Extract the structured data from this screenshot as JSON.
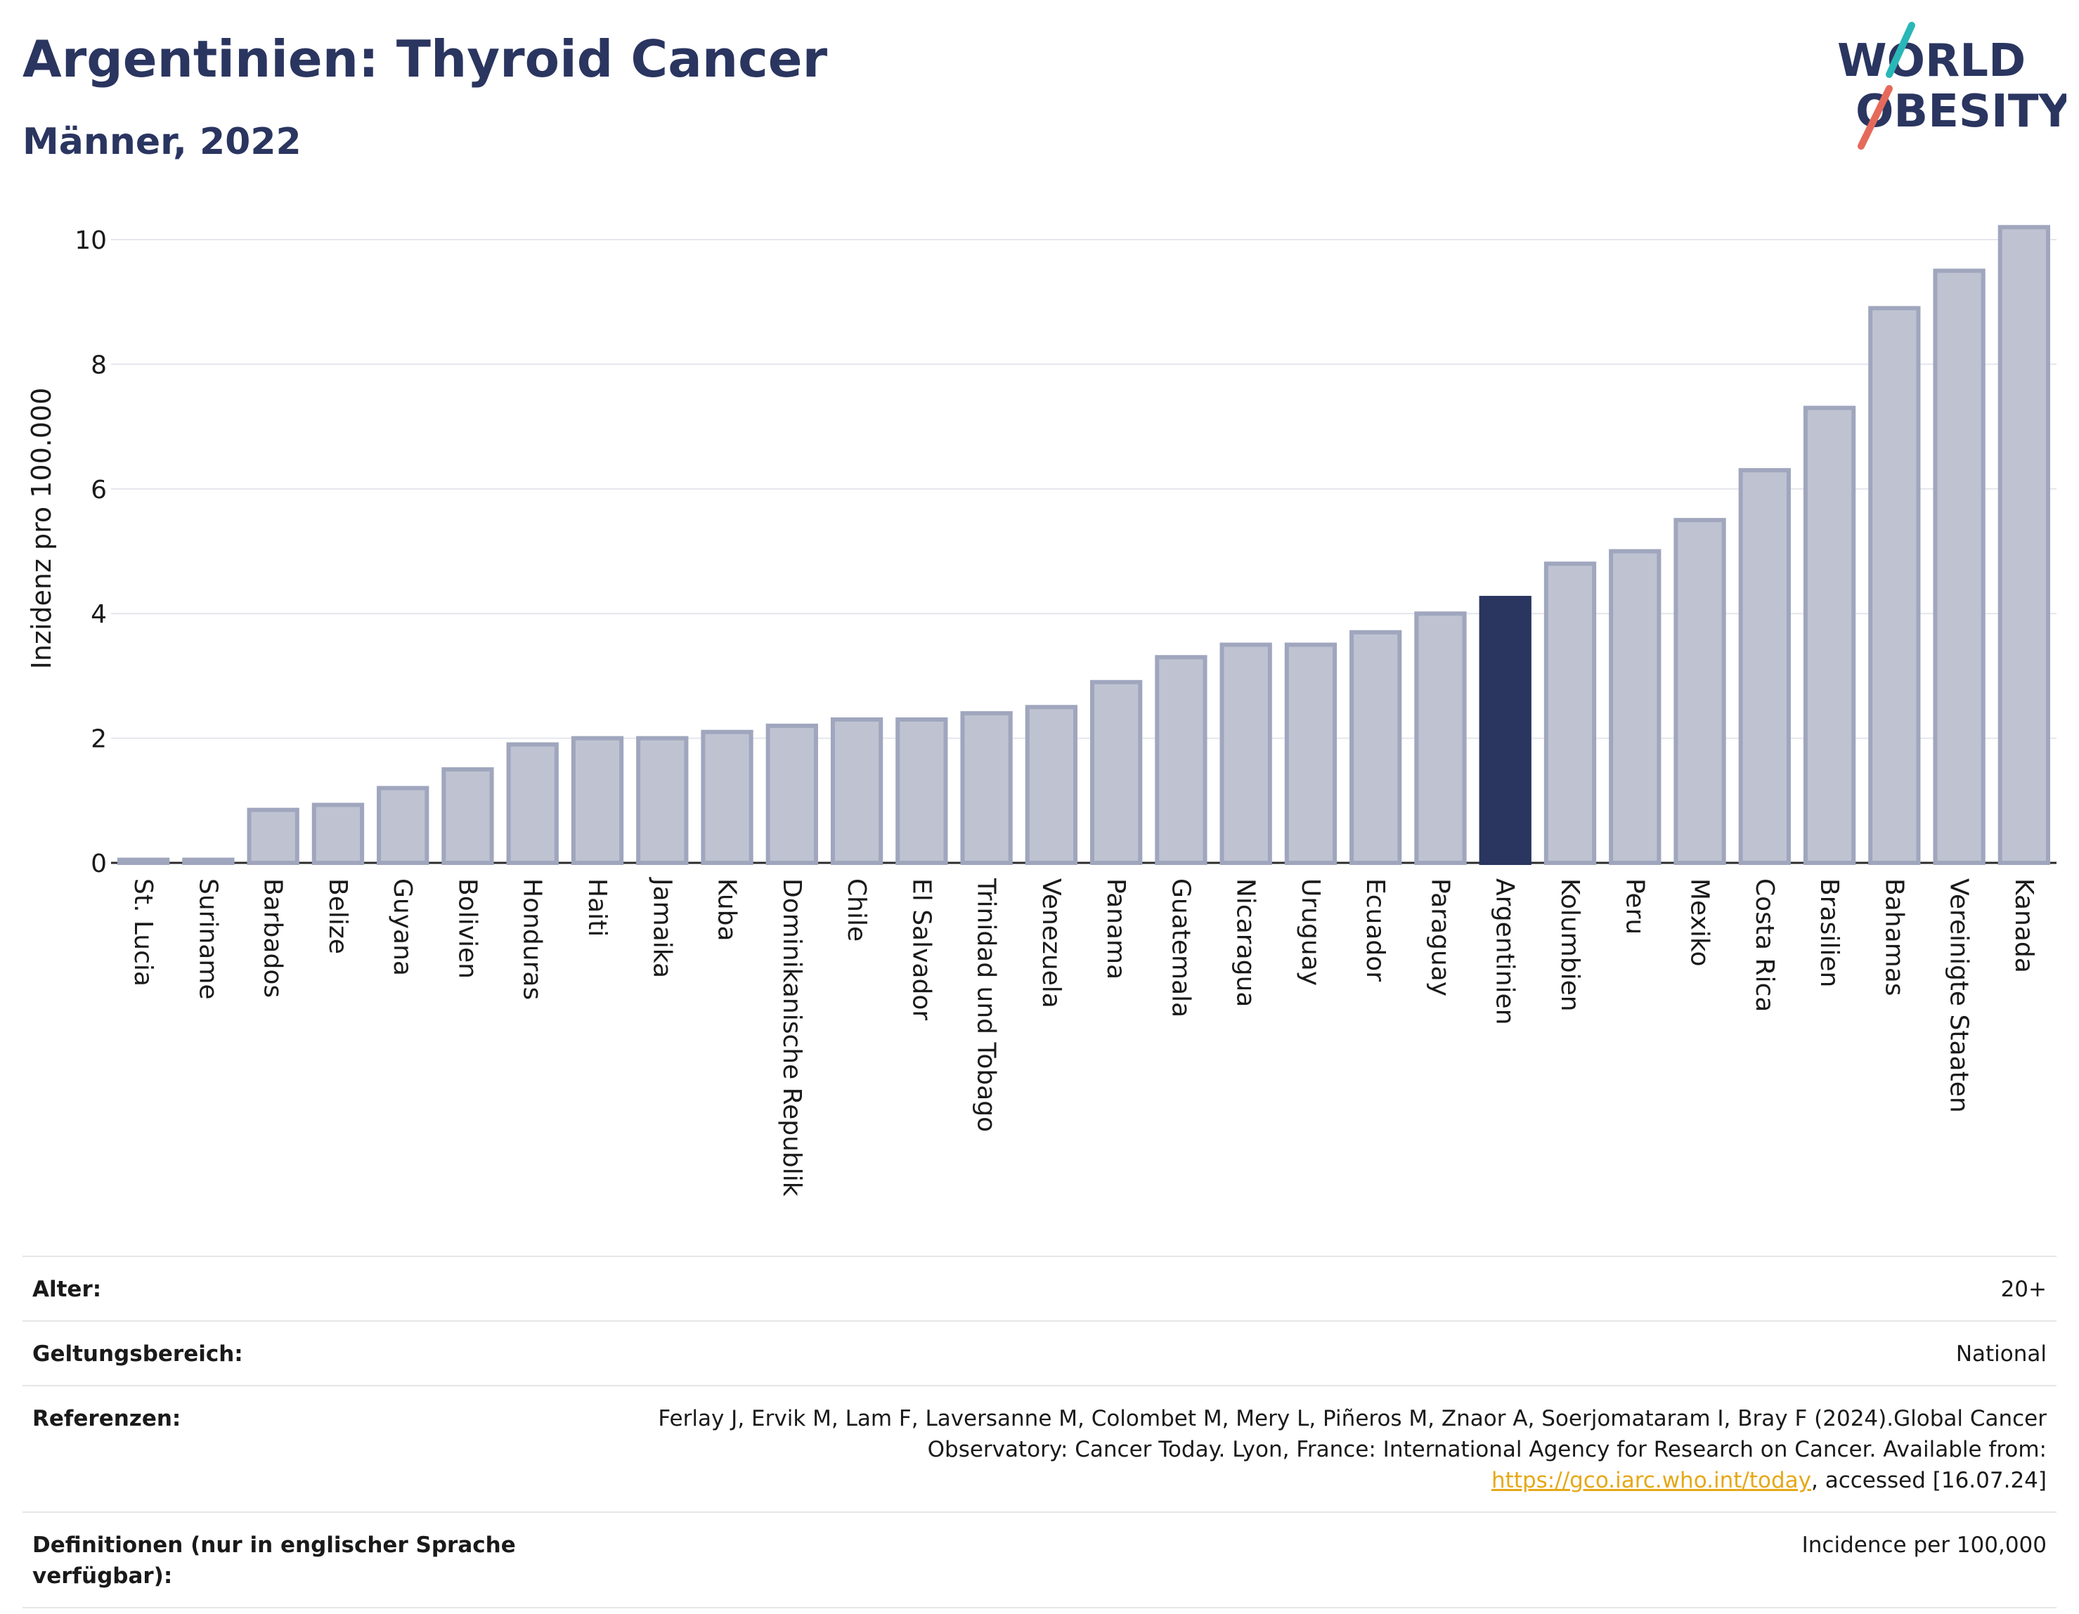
{
  "header": {
    "title": "Argentinien: Thyroid Cancer",
    "subtitle": "Männer, 2022"
  },
  "logo": {
    "line1": "WORLD",
    "line2": "OBESITY"
  },
  "colors": {
    "bar": "#bfc3d1",
    "bar_border": "#9fa6bd",
    "highlight": "#2a3560",
    "accent_teal": "#2ab7b7",
    "accent_red": "#e56a5b"
  },
  "chart_data": {
    "type": "bar",
    "ylabel": "Inzidenz pro 100.000",
    "xlabel": "",
    "ylim": [
      0,
      10.5
    ],
    "yticks": [
      0,
      2,
      4,
      6,
      8,
      10
    ],
    "grid": true,
    "highlight": "Argentinien",
    "categories": [
      "St. Lucia",
      "Suriname",
      "Barbados",
      "Belize",
      "Guyana",
      "Bolivien",
      "Honduras",
      "Haiti",
      "Jamaika",
      "Kuba",
      "Dominikanische Republik",
      "Chile",
      "El Salvador",
      "Trinidad und Tobago",
      "Venezuela",
      "Panama",
      "Guatemala",
      "Nicaragua",
      "Uruguay",
      "Ecuador",
      "Paraguay",
      "Argentinien",
      "Kolumbien",
      "Peru",
      "Mexiko",
      "Costa Rica",
      "Brasilien",
      "Bahamas",
      "Vereinigte Staaten",
      "Kanada"
    ],
    "values": [
      0.05,
      0.05,
      0.85,
      0.93,
      1.2,
      1.5,
      1.9,
      2.0,
      2.0,
      2.1,
      2.2,
      2.3,
      2.3,
      2.4,
      2.5,
      2.9,
      3.3,
      3.5,
      3.5,
      3.7,
      4.0,
      4.25,
      4.8,
      5.0,
      5.5,
      6.3,
      7.3,
      8.9,
      9.5,
      10.2
    ]
  },
  "info": {
    "age_label": "Alter:",
    "age_value": "20+",
    "scope_label": "Geltungsbereich:",
    "scope_value": "National",
    "ref_label": "Referenzen:",
    "ref_text_1": "Ferlay J, Ervik M, Lam F, Laversanne M, Colombet M, Mery L, Piñeros M, Znaor A, Soerjomataram I, Bray F (2024).Global Cancer Observatory: Cancer Today. Lyon, France: International Agency for Research on Cancer. Available from: ",
    "ref_link": "https://gco.iarc.who.int/today",
    "ref_text_2": ", accessed [16.07.24]",
    "def_label": "Definitionen (nur in englischer Sprache verfügbar):",
    "def_value": "Incidence per 100,000"
  }
}
